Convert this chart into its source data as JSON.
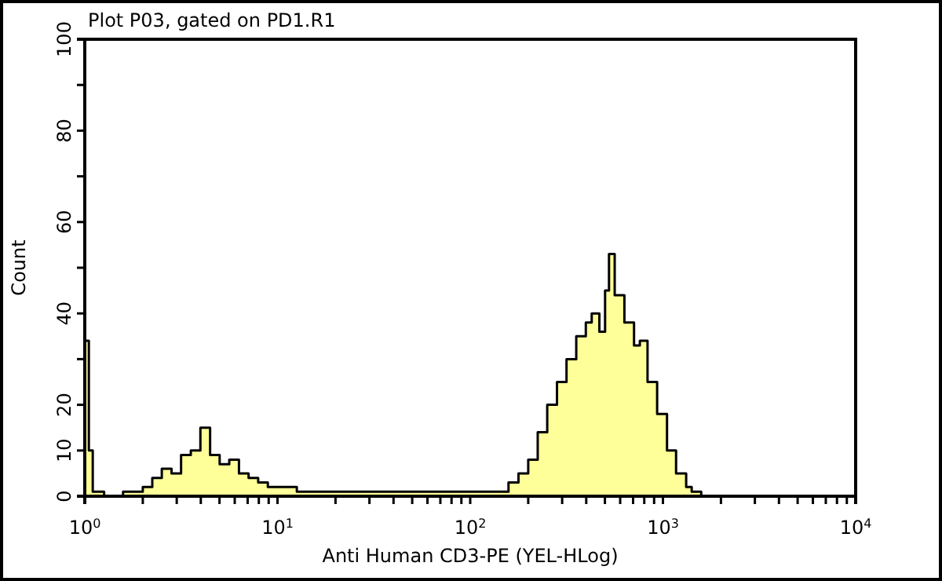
{
  "chart_data": {
    "type": "area",
    "title": "Plot P03, gated on PD1.R1",
    "xlabel": "Anti Human CD3-PE (YEL-HLog)",
    "ylabel": "Count",
    "log": "x",
    "x": [
      1,
      1.05,
      1.1,
      1.26,
      1.58,
      2.0,
      2.24,
      2.51,
      2.82,
      3.16,
      3.55,
      3.98,
      4.47,
      5.01,
      5.62,
      6.31,
      7.08,
      7.94,
      8.91,
      10,
      12.6,
      15.8,
      25.1,
      39.8,
      63.1,
      100,
      126,
      158,
      178,
      200,
      224,
      251,
      282,
      316,
      355,
      398,
      427,
      468,
      501,
      525,
      562,
      631,
      708,
      759,
      832,
      933,
      1050,
      1170,
      1320,
      1410,
      1580,
      10000
    ],
    "series": [
      {
        "color": "#ffff99",
        "values": [
          34,
          10,
          1,
          0,
          1,
          2,
          4,
          6,
          5,
          9,
          10,
          15,
          9,
          7,
          8,
          5,
          4,
          3,
          2,
          2,
          1,
          1,
          1,
          1,
          1,
          1,
          1,
          3,
          5,
          8,
          14,
          20,
          25,
          30,
          35,
          38,
          40,
          36,
          45,
          53,
          44,
          38,
          33,
          34,
          25,
          18,
          10,
          5,
          2,
          1,
          0,
          0
        ]
      }
    ],
    "xlim": [
      1,
      10000
    ],
    "xticks": [
      {
        "value": 1,
        "label": "10$^{0}$"
      },
      {
        "value": 2,
        "label": null
      },
      {
        "value": 3,
        "label": null
      },
      {
        "value": 4,
        "label": null
      },
      {
        "value": 5,
        "label": null
      },
      {
        "value": 6,
        "label": null
      },
      {
        "value": 7,
        "label": null
      },
      {
        "value": 8,
        "label": null
      },
      {
        "value": 9,
        "label": null
      },
      {
        "value": 10,
        "label": "10$^{1}$"
      },
      {
        "value": 20,
        "label": null
      },
      {
        "value": 30,
        "label": null
      },
      {
        "value": 40,
        "label": null
      },
      {
        "value": 50,
        "label": null
      },
      {
        "value": 60,
        "label": null
      },
      {
        "value": 70,
        "label": null
      },
      {
        "value": 80,
        "label": null
      },
      {
        "value": 90,
        "label": null
      },
      {
        "value": 100,
        "label": "10$^{2}$"
      },
      {
        "value": 200,
        "label": null
      },
      {
        "value": 300,
        "label": null
      },
      {
        "value": 400,
        "label": null
      },
      {
        "value": 500,
        "label": null
      },
      {
        "value": 600,
        "label": null
      },
      {
        "value": 700,
        "label": null
      },
      {
        "value": 800,
        "label": null
      },
      {
        "value": 900,
        "label": null
      },
      {
        "value": 1000,
        "label": "10$^{3}$"
      },
      {
        "value": 2000,
        "label": null
      },
      {
        "value": 3000,
        "label": null
      },
      {
        "value": 4000,
        "label": null
      },
      {
        "value": 5000,
        "label": null
      },
      {
        "value": 6000,
        "label": null
      },
      {
        "value": 7000,
        "label": null
      },
      {
        "value": 8000,
        "label": null
      },
      {
        "value": 9000,
        "label": null
      },
      {
        "value": 10000,
        "label": "10$^{4}$"
      }
    ],
    "ylim": [
      0,
      100
    ],
    "yticks": [
      0,
      10,
      20,
      {
        "value": 30,
        "label": null
      },
      40,
      {
        "value": 50,
        "label": null
      },
      60,
      {
        "value": 70,
        "label": null
      },
      80,
      {
        "value": 90,
        "label": null
      },
      100
    ]
  }
}
